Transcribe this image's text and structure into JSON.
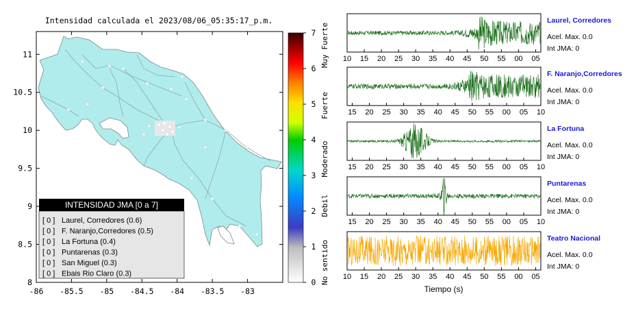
{
  "map": {
    "title": "Intensidad calculada el 2023/08/06_05:35:17_p.m.",
    "x_ticks": [
      "-86",
      "-85.5",
      "-85",
      "-84.5",
      "-84",
      "-83.5",
      "-83"
    ],
    "y_ticks": [
      "11",
      "10.5",
      "10",
      "9.5",
      "9",
      "8.5",
      "8"
    ],
    "xlim": [
      -86,
      -82.5
    ],
    "ylim": [
      8,
      11.3
    ],
    "land_color": "#b0ecec",
    "legend": {
      "title": "INTENSIDAD JMA [0 a 7]",
      "rows": [
        {
          "badge": "[ 0 ]",
          "text": "Laurel, Corredores (0.6)"
        },
        {
          "badge": "[ 0 ]",
          "text": "F. Naranjo,Corredores (0.5)"
        },
        {
          "badge": "[ 0 ]",
          "text": "La Fortuna (0.4)"
        },
        {
          "badge": "[ 0 ]",
          "text": "Puntarenas (0.3)"
        },
        {
          "badge": "[ 0 ]",
          "text": "San Miguel (0.3)"
        },
        {
          "badge": "[ 0 ]",
          "text": "Ebais Rio Claro (0.3)"
        }
      ]
    }
  },
  "colorbar": {
    "ticks": [
      "0",
      "1",
      "2",
      "3",
      "4",
      "5",
      "6",
      "7"
    ],
    "range": [
      0,
      7
    ],
    "labels": [
      "No sentido",
      "Debil",
      "Moderado",
      "Fuerte",
      "Muy Fuerte"
    ]
  },
  "chart_data": {
    "type": "line",
    "xlabel": "Tiempo (s)",
    "series": [
      {
        "name": "Laurel, Corredores",
        "accel_label": "Acel. Max. 0.0",
        "int_label": "Int JMA: 0",
        "color": "#1a6e1a",
        "ticks": [
          "10",
          "15",
          "20",
          "25",
          "30",
          "35",
          "40",
          "45",
          "50",
          "55",
          "00",
          "05"
        ],
        "tick_start": 10,
        "burst_center": 68,
        "burst_amp": 1.0,
        "base_amp": 0.12
      },
      {
        "name": "F. Naranjo,Corredores",
        "accel_label": "Acel. Max. 0.0",
        "int_label": "Int JMA: 0",
        "color": "#1a6e1a",
        "ticks": [
          "15",
          "20",
          "25",
          "30",
          "35",
          "40",
          "45",
          "50",
          "55",
          "00",
          "05",
          "10"
        ],
        "tick_start": 15,
        "burst_center": 63,
        "burst_amp": 0.95,
        "base_amp": 0.14
      },
      {
        "name": "La Fortuna",
        "accel_label": "Acel. Max. 0.0",
        "int_label": "Int JMA: 0",
        "color": "#1a6e1a",
        "ticks": [
          "15",
          "20",
          "25",
          "30",
          "35",
          "40",
          "45",
          "50",
          "55",
          "00",
          "05",
          "10"
        ],
        "tick_start": 15,
        "burst_center": 35,
        "burst_amp": 1.0,
        "base_amp": 0.06
      },
      {
        "name": "Puntarenas",
        "accel_label": "Acel. Max. 0.0",
        "int_label": "Int JMA: 0",
        "color": "#1a6e1a",
        "ticks": [
          "15",
          "20",
          "25",
          "30",
          "35",
          "40",
          "45",
          "50",
          "55",
          "00",
          "05",
          "10"
        ],
        "tick_start": 15,
        "burst_center": 50,
        "burst_amp": 1.0,
        "base_amp": 0.12
      },
      {
        "name": "Teatro Nacional",
        "accel_label": "Acel. Max. 0.0",
        "int_label": "Int JMA: 0",
        "color": "#f5a800",
        "ticks": [
          "10",
          "15",
          "20",
          "25",
          "30",
          "35",
          "40",
          "45",
          "50",
          "55",
          "00",
          "05"
        ],
        "tick_start": 10,
        "burst_center": 0,
        "burst_amp": 0,
        "base_amp": 0.85
      }
    ]
  }
}
